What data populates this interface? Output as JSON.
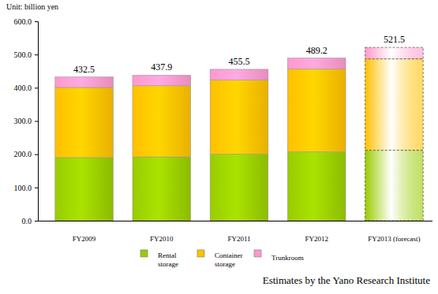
{
  "chart_data": {
    "type": "bar",
    "stacked": true,
    "ylabel": "Unit: billion yen",
    "annotations": [
      "Estimates by the Yano Research Institute"
    ],
    "categories": [
      "FY2009",
      "FY2010",
      "FY2011",
      "FY2012",
      "FY2013 (forecast)"
    ],
    "series": [
      {
        "name": "Rental storage",
        "color": "#99cc00",
        "values": [
          190,
          192,
          200,
          207,
          212
        ]
      },
      {
        "name": "Container storage",
        "color": "#ffc000",
        "values": [
          211,
          214,
          223,
          249,
          275
        ]
      },
      {
        "name": "Trunkroom",
        "color": "#ff99cc",
        "values": [
          31.5,
          31.9,
          32.5,
          33.2,
          34.5
        ]
      }
    ],
    "totals": [
      432.5,
      437.9,
      455.5,
      489.2,
      521.5
    ],
    "ylim": [
      0,
      600
    ],
    "yticks": [
      {
        "value": 0,
        "label": "0.0"
      },
      {
        "value": 100,
        "label": "100.0"
      },
      {
        "value": 200,
        "label": "200.0"
      },
      {
        "value": 300,
        "label": "300.0"
      },
      {
        "value": 400,
        "label": "400.0"
      },
      {
        "value": 500,
        "label": "500.0"
      },
      {
        "value": 600,
        "label": "600.0"
      }
    ],
    "legend": "bottom",
    "grid": false
  }
}
